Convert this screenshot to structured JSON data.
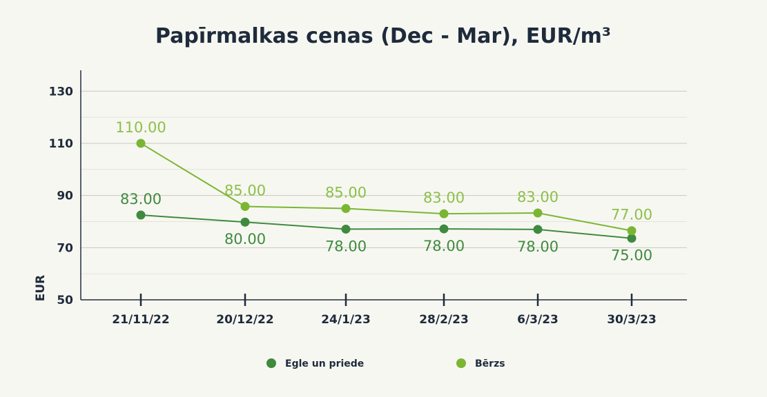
{
  "chart_data": {
    "type": "line",
    "title": "Papīrmalkas cenas (Dec - Mar), EUR/m³",
    "ylabel": "EUR",
    "xlabel": "",
    "categories": [
      "21/11/22",
      "20/12/22",
      "24/1/23",
      "28/2/23",
      "6/3/23",
      "30/3/23"
    ],
    "yticks": [
      50,
      70,
      90,
      110,
      130
    ],
    "ylim": [
      50,
      138
    ],
    "grid": true,
    "legend_position": "bottom",
    "series": [
      {
        "name": "Egle un priede",
        "color": "#3f8a3f",
        "values": [
          83.0,
          80.0,
          78.0,
          78.0,
          78.0,
          75.0
        ],
        "point_positions": [
          82.5,
          79.8,
          77.1,
          77.2,
          77.0,
          73.6
        ],
        "labels": [
          "83.00",
          "80.00",
          "78.00",
          "78.00",
          "78.00",
          "75.00"
        ],
        "label_placement": [
          "above",
          "below",
          "below",
          "below",
          "below",
          "below"
        ]
      },
      {
        "name": "Bērzs",
        "color": "#7ab632",
        "label_color": "#8cc04a",
        "values": [
          110.0,
          85.0,
          85.0,
          83.0,
          83.0,
          77.0
        ],
        "point_positions": [
          110.0,
          85.8,
          85.0,
          83.0,
          83.3,
          76.5
        ],
        "labels": [
          "110.00",
          "85.00",
          "85.00",
          "83.00",
          "83.00",
          "77.00"
        ],
        "label_placement": [
          "above",
          "above",
          "above",
          "above",
          "above",
          "above"
        ]
      }
    ]
  }
}
